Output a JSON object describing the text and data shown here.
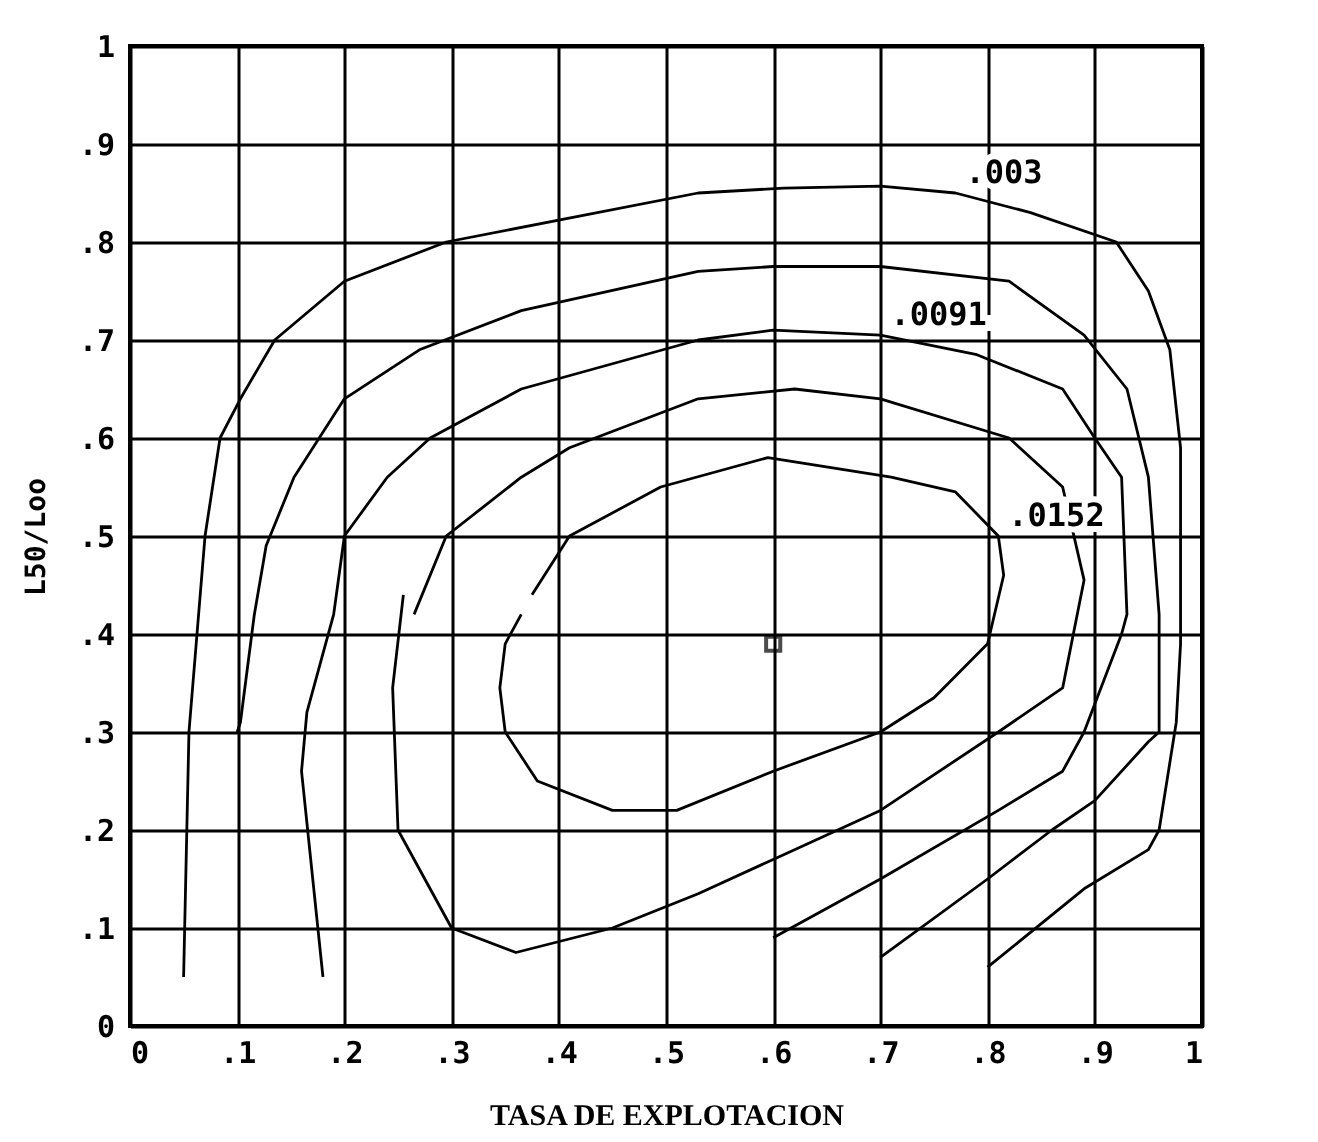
{
  "chart_data": {
    "type": "line",
    "xlabel": "TASA DE EXPLOTACION",
    "ylabel": "L50/Loo",
    "grid": true,
    "legend": false,
    "xlim": [
      0,
      1
    ],
    "ylim": [
      0,
      1
    ],
    "xticks": [
      {
        "value": 0,
        "label": "0"
      },
      {
        "value": 0.1,
        "label": ".1"
      },
      {
        "value": 0.2,
        "label": ".2"
      },
      {
        "value": 0.3,
        "label": ".3"
      },
      {
        "value": 0.4,
        "label": ".4"
      },
      {
        "value": 0.5,
        "label": ".5"
      },
      {
        "value": 0.6,
        "label": ".6"
      },
      {
        "value": 0.7,
        "label": ".7"
      },
      {
        "value": 0.8,
        "label": ".8"
      },
      {
        "value": 0.9,
        "label": ".9"
      },
      1
    ],
    "yticks": [
      {
        "value": 0,
        "label": "0"
      },
      {
        "value": 0.1,
        "label": ".1"
      },
      {
        "value": 0.2,
        "label": ".2"
      },
      {
        "value": 0.3,
        "label": ".3"
      },
      {
        "value": 0.4,
        "label": ".4"
      },
      {
        "value": 0.5,
        "label": ".5"
      },
      {
        "value": 0.6,
        "label": ".6"
      },
      {
        "value": 0.7,
        "label": ".7"
      },
      {
        "value": 0.8,
        "label": ".8"
      },
      {
        "value": 0.9,
        "label": ".9"
      },
      1
    ],
    "series": [
      {
        "color": "#000000",
        "x": [
          0.05,
          0.055,
          0.07,
          0.084,
          0.103,
          0.135,
          0.2,
          0.295,
          0.53,
          0.61,
          0.7,
          0.77,
          0.84,
          0.92,
          0.95,
          0.97,
          0.98,
          0.98,
          0.976,
          0.96,
          0.95,
          0.89,
          0.8
        ],
        "values": [
          0.05,
          0.3,
          0.5,
          0.6,
          0.64,
          0.7,
          0.76,
          0.8,
          0.85,
          0.855,
          0.857,
          0.85,
          0.83,
          0.8,
          0.75,
          0.69,
          0.59,
          0.39,
          0.31,
          0.2,
          0.18,
          0.14,
          0.06
        ]
      },
      {
        "color": "#000000",
        "x": [
          0.1,
          0.103,
          0.116,
          0.127,
          0.153,
          0.2,
          0.27,
          0.365,
          0.53,
          0.6,
          0.7,
          0.82,
          0.89,
          0.93,
          0.95,
          0.96,
          0.96,
          0.95,
          0.9,
          0.86,
          0.8,
          0.7
        ],
        "values": [
          0.3,
          0.31,
          0.42,
          0.49,
          0.56,
          0.64,
          0.69,
          0.73,
          0.77,
          0.775,
          0.775,
          0.76,
          0.705,
          0.65,
          0.56,
          0.42,
          0.3,
          0.29,
          0.23,
          0.2,
          0.15,
          0.07
        ]
      },
      {
        "color": "#000000",
        "x": [
          0.18,
          0.17,
          0.16,
          0.165,
          0.19,
          0.2,
          0.24,
          0.28,
          0.365,
          0.53,
          0.6,
          0.7,
          0.79,
          0.87,
          0.9,
          0.925,
          0.93,
          0.925,
          0.89,
          0.87,
          0.81,
          0.7,
          0.6
        ],
        "values": [
          0.05,
          0.155,
          0.26,
          0.32,
          0.42,
          0.5,
          0.56,
          0.6,
          0.65,
          0.7,
          0.71,
          0.705,
          0.685,
          0.65,
          0.6,
          0.56,
          0.42,
          0.4,
          0.3,
          0.26,
          0.22,
          0.15,
          0.09
        ]
      },
      {
        "color": "#000000",
        "x": [
          0.255,
          0.245,
          0.25,
          0.3,
          0.36,
          0.45,
          0.53,
          0.6,
          0.7,
          0.81,
          0.87,
          0.88,
          0.89,
          0.87,
          0.82,
          0.7,
          0.62,
          0.53,
          0.41,
          0.365,
          0.295,
          0.265
        ],
        "values": [
          0.44,
          0.345,
          0.2,
          0.1,
          0.075,
          0.1,
          0.135,
          0.17,
          0.22,
          0.3,
          0.345,
          0.4,
          0.455,
          0.55,
          0.6,
          0.64,
          0.65,
          0.64,
          0.59,
          0.56,
          0.5,
          0.42
        ]
      },
      {
        "color": "#000000",
        "x": [
          0.365,
          0.35,
          0.345,
          0.35,
          0.38,
          0.45,
          0.51,
          0.6,
          0.7,
          0.75,
          0.8,
          0.815,
          0.81,
          0.77,
          0.71,
          0.595,
          0.495,
          0.41,
          0.375
        ],
        "values": [
          0.42,
          0.39,
          0.345,
          0.3,
          0.25,
          0.22,
          0.22,
          0.26,
          0.3,
          0.335,
          0.39,
          0.46,
          0.5,
          0.545,
          0.56,
          0.58,
          0.55,
          0.5,
          0.44
        ]
      },
      {
        "type": "scatter",
        "marker": "square",
        "color": "#000000",
        "x": [
          0.6
        ],
        "values": [
          0.39
        ]
      }
    ],
    "annotations": [
      {
        "text": ".003",
        "x": 0.77,
        "y": 0.85
      },
      {
        "text": ".0091",
        "x": 0.7,
        "y": 0.705
      },
      {
        "text": ".0152",
        "x": 0.81,
        "y": 0.5
      }
    ]
  }
}
